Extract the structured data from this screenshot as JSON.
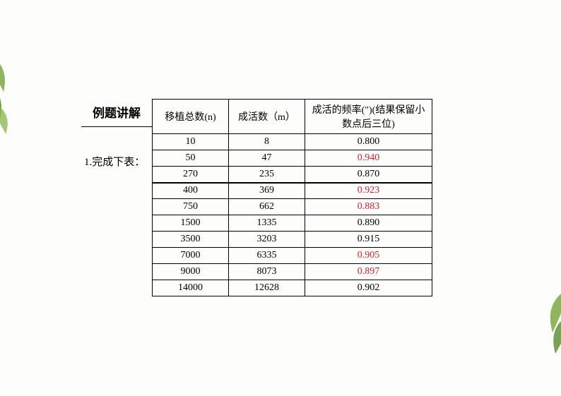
{
  "section_title": "例题讲解",
  "subtitle": "1.完成下表：",
  "headers": {
    "n": "移植总数(n)",
    "m": "成活数（m）",
    "f": "成活的频率(\")(结果保留小数点后三位)"
  },
  "rows": [
    {
      "n": "10",
      "m": "8",
      "f": "0.800",
      "red": false
    },
    {
      "n": "50",
      "m": "47",
      "f": "0.940",
      "red": true
    },
    {
      "n": "270",
      "m": "235",
      "f": "0.870",
      "red": false
    },
    {
      "n": "400",
      "m": "369",
      "f": "0.923",
      "red": true
    },
    {
      "n": "750",
      "m": "662",
      "f": "0.883",
      "red": true
    },
    {
      "n": "1500",
      "m": "1335",
      "f": "0.890",
      "red": false
    },
    {
      "n": "3500",
      "m": "3203",
      "f": "0.915",
      "red": false
    },
    {
      "n": "7000",
      "m": "6335",
      "f": "0.905",
      "red": true
    },
    {
      "n": "9000",
      "m": "8073",
      "f": "0.897",
      "red": true
    },
    {
      "n": "14000",
      "m": "12628",
      "f": "0.902",
      "red": false
    }
  ],
  "colors": {
    "text": "#000000",
    "highlight": "#c7272a",
    "leaf": "#7ba843",
    "leaf_dark": "#5a8a2e",
    "background": "#fdfdfb"
  }
}
